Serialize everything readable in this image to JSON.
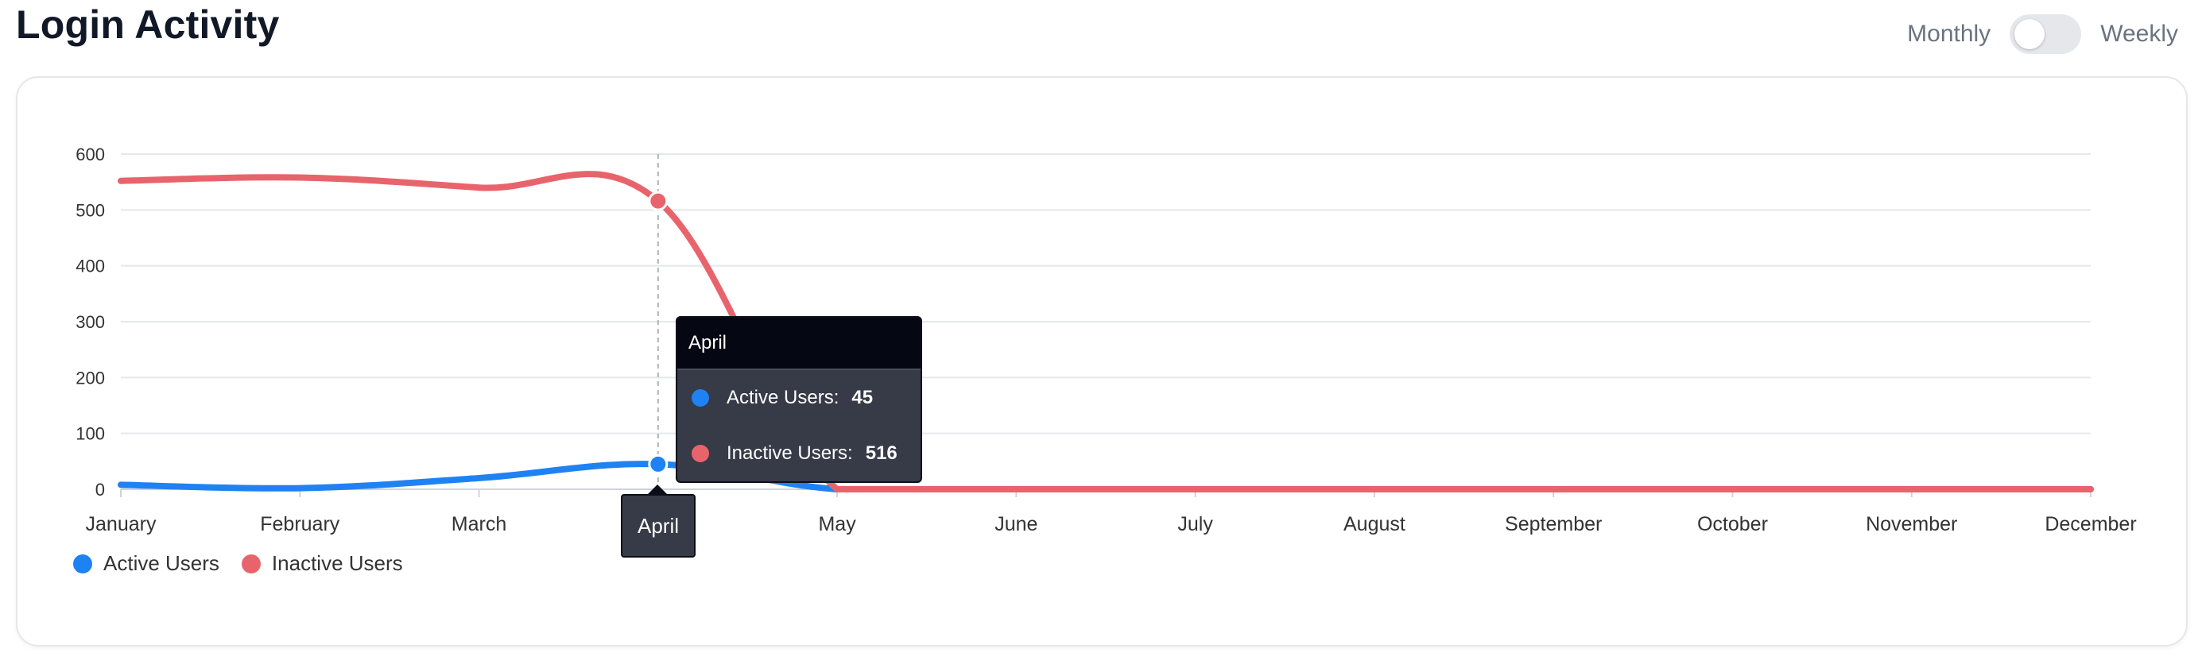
{
  "header": {
    "title": "Login Activity",
    "toggle_left_label": "Monthly",
    "toggle_right_label": "Weekly"
  },
  "colors": {
    "active": "#1f82f3",
    "inactive": "#e8646c",
    "grid": "#e5e7eb",
    "axis_text": "#333333"
  },
  "chart_data": {
    "type": "line",
    "title": "",
    "xlabel": "",
    "ylabel": "",
    "categories": [
      "January",
      "February",
      "March",
      "April",
      "May",
      "June",
      "July",
      "August",
      "September",
      "October",
      "November",
      "December"
    ],
    "series": [
      {
        "name": "Active Users",
        "values": [
          8,
          2,
          20,
          45,
          0,
          0,
          0,
          0,
          0,
          0,
          0,
          0
        ]
      },
      {
        "name": "Inactive Users",
        "values": [
          552,
          558,
          540,
          516,
          0,
          0,
          0,
          0,
          0,
          0,
          0,
          0
        ]
      }
    ],
    "ylim": [
      0,
      600
    ],
    "yticks": [
      0,
      100,
      200,
      300,
      400,
      500,
      600
    ],
    "grid": true,
    "legend": "bottom-left",
    "hovered_index": 3
  },
  "tooltip": {
    "title": "April",
    "rows": [
      {
        "label": "Active Users:",
        "value": "45"
      },
      {
        "label": "Inactive Users:",
        "value": "516"
      }
    ],
    "x_label": "April"
  }
}
